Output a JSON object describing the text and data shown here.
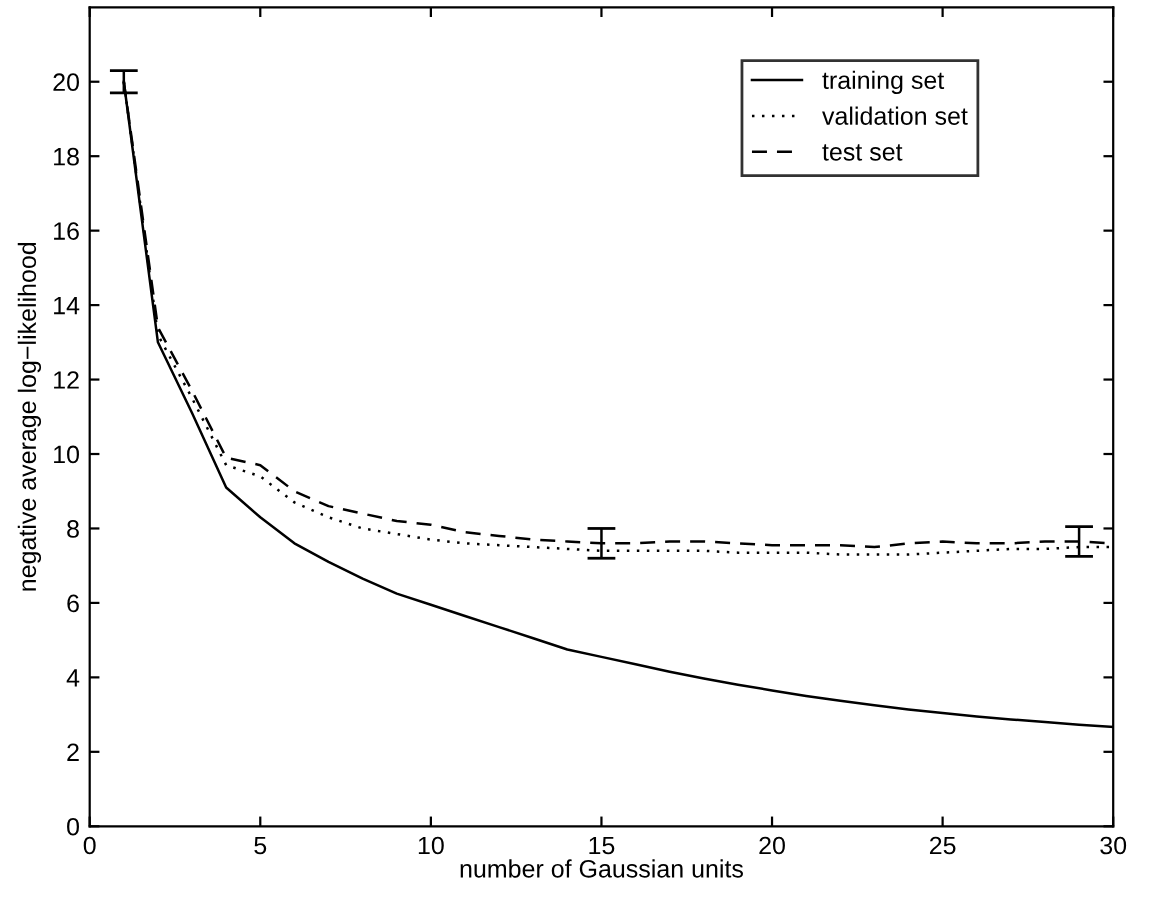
{
  "chart_data": {
    "type": "line",
    "xlabel": "number of Gaussian units",
    "ylabel": "negative average log−likelihood",
    "x": [
      1,
      2,
      3,
      4,
      5,
      6,
      7,
      8,
      9,
      10,
      11,
      12,
      13,
      14,
      15,
      16,
      17,
      18,
      19,
      20,
      21,
      22,
      23,
      24,
      25,
      26,
      27,
      28,
      29,
      30
    ],
    "series": [
      {
        "name": "training set",
        "color": "#000000",
        "line_style": "solid",
        "values": [
          20,
          13,
          11.1,
          9.1,
          8.3,
          7.6,
          7.1,
          6.65,
          6.25,
          5.95,
          5.65,
          5.35,
          5.05,
          4.75,
          4.55,
          4.35,
          4.15,
          3.97,
          3.8,
          3.65,
          3.5,
          3.37,
          3.25,
          3.14,
          3.04,
          2.95,
          2.87,
          2.8,
          2.73,
          2.67
        ]
      },
      {
        "name": "validation set",
        "color": "#000000",
        "line_style": "dotted",
        "values": [
          20,
          13.2,
          11.5,
          9.7,
          9.4,
          8.7,
          8.3,
          8.0,
          7.85,
          7.7,
          7.6,
          7.55,
          7.5,
          7.45,
          7.4,
          7.4,
          7.4,
          7.4,
          7.35,
          7.35,
          7.35,
          7.3,
          7.3,
          7.3,
          7.35,
          7.4,
          7.45,
          7.45,
          7.5,
          7.5
        ]
      },
      {
        "name": "test set",
        "color": "#000000",
        "line_style": "dashed",
        "values": [
          20,
          13.4,
          11.7,
          9.9,
          9.7,
          9.0,
          8.6,
          8.4,
          8.2,
          8.1,
          7.9,
          7.8,
          7.7,
          7.65,
          7.6,
          7.6,
          7.65,
          7.65,
          7.6,
          7.55,
          7.55,
          7.55,
          7.5,
          7.6,
          7.65,
          7.6,
          7.6,
          7.65,
          7.65,
          7.6
        ],
        "errors": [
          0.3,
          null,
          null,
          null,
          null,
          null,
          null,
          null,
          null,
          null,
          null,
          null,
          null,
          null,
          0.4,
          null,
          null,
          null,
          null,
          null,
          null,
          null,
          null,
          null,
          null,
          null,
          null,
          null,
          0.4,
          null
        ]
      }
    ],
    "xlim": [
      0,
      30
    ],
    "ylim": [
      0,
      22
    ],
    "xticks": [
      0,
      5,
      10,
      15,
      20,
      25,
      30
    ],
    "yticks": [
      0,
      2,
      4,
      6,
      8,
      10,
      12,
      14,
      16,
      18,
      20
    ],
    "legend": "top right",
    "grid": false
  }
}
